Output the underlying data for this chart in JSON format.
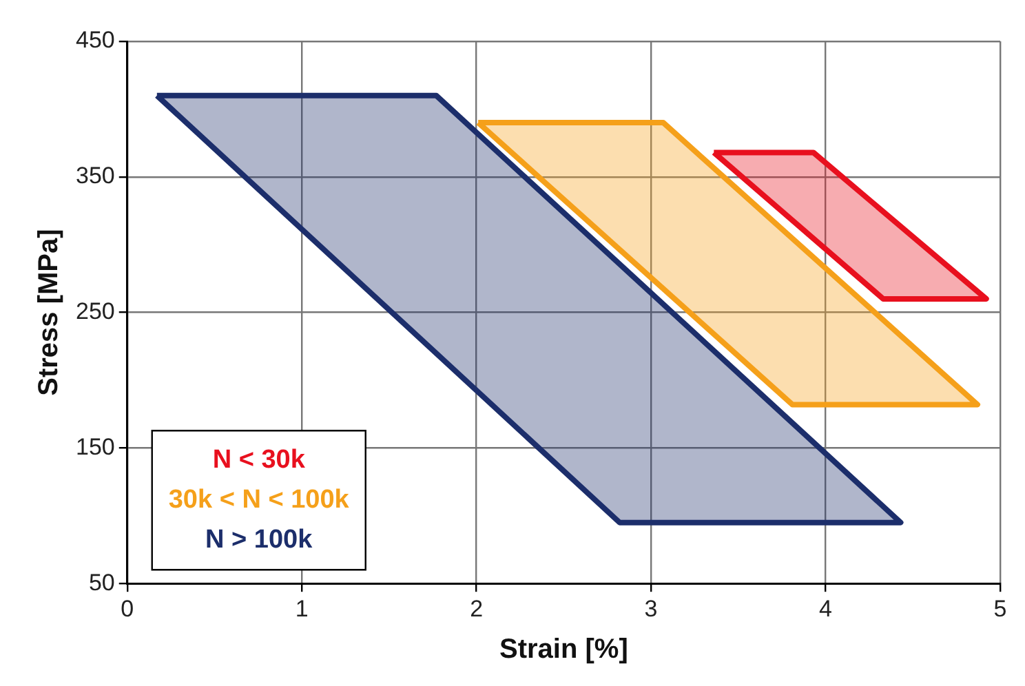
{
  "chart_data": {
    "type": "area",
    "xlabel": "Strain [%]",
    "ylabel": "Stress [MPa]",
    "xlim": [
      0,
      5
    ],
    "xticks": [
      0,
      1,
      2,
      3,
      4,
      5
    ],
    "ylim": [
      50,
      450
    ],
    "yticks": [
      50,
      150,
      250,
      350,
      450
    ],
    "grid": true,
    "legend": "bottom left",
    "line_style": "solid",
    "series": [
      {
        "name": "N < 30k",
        "color": "#e8101e",
        "x": [
          3.36,
          3.93,
          4.92,
          4.33,
          3.36
        ],
        "values": [
          368,
          368,
          260,
          260,
          368
        ]
      },
      {
        "name": "30k < N < 100k",
        "color": "#f5a01a",
        "x": [
          2.01,
          3.07,
          4.87,
          3.81,
          2.01
        ],
        "values": [
          390,
          390,
          182,
          182,
          390
        ]
      },
      {
        "name": "N > 100k",
        "color": "#1c2e6b",
        "x": [
          0.17,
          1.77,
          4.43,
          2.82,
          0.17
        ],
        "values": [
          410,
          410,
          95,
          95,
          410
        ]
      }
    ]
  }
}
